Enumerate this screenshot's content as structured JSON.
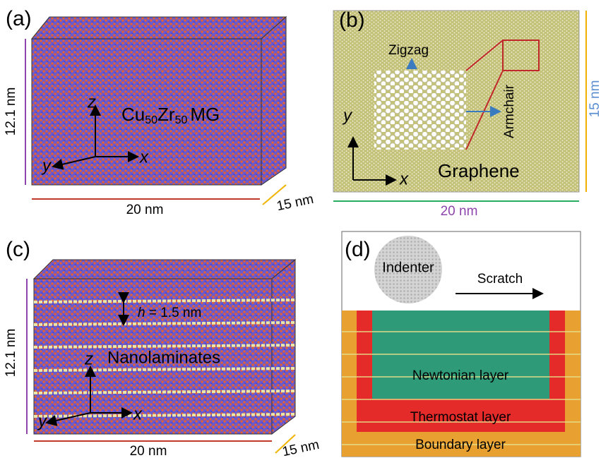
{
  "panel_a": {
    "label": "(a)",
    "material": [
      "Cu",
      "50",
      "Zr",
      "50",
      "MG"
    ],
    "height": "12.1 nm",
    "width": "20 nm",
    "depth": "15 nm",
    "axis_z": "z",
    "axis_x": "x",
    "axis_y": "y"
  },
  "panel_b": {
    "label": "(b)",
    "zigzag": "Zigzag",
    "armchair": "Armchair",
    "material": "Graphene",
    "width": "20 nm",
    "height": "15 nm",
    "axis_y": "y",
    "axis_x": "x"
  },
  "panel_c": {
    "label": "(c)",
    "spacing_symbol": "h",
    "spacing_value": "= 1.5 nm",
    "material": "Nanolaminates",
    "height": "12.1 nm",
    "width": "20 nm",
    "depth": "15 nm",
    "axis_z": "z",
    "axis_x": "x",
    "axis_y": "y"
  },
  "panel_d": {
    "label": "(d)",
    "indenter": "Indenter",
    "direction": "Scratch",
    "layers": [
      "Newtonian layer",
      "Thermostat layer",
      "Boundary layer"
    ]
  }
}
